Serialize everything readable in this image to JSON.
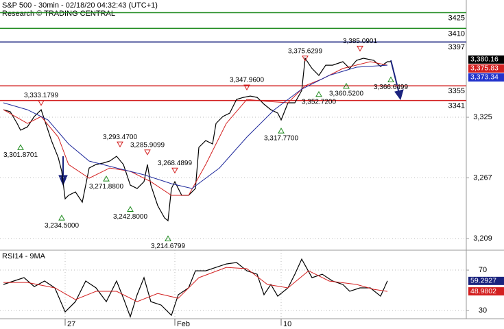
{
  "chart_data": [
    {
      "type": "line",
      "title": "S&P 500 - 30min - 02/18/20 04:32:43 (UTC+1)",
      "subtitle": "Research © TRADING CENTRAL",
      "xlim": [
        0,
        136
      ],
      "ylim": [
        3197.9,
        3437.1
      ],
      "yticks": [
        {
          "value": 3325,
          "label": "3,325"
        },
        {
          "value": 3267,
          "label": "3,267"
        },
        {
          "value": 3209,
          "label": "3,209"
        }
      ],
      "grid": true,
      "series": [
        {
          "color": "#000000",
          "x": [
            1,
            3,
            5,
            6,
            8,
            10,
            12,
            13,
            15,
            17,
            18,
            19,
            20,
            22,
            24,
            25,
            26,
            28,
            30,
            32,
            34,
            36,
            38,
            40,
            42,
            43,
            44,
            46,
            48,
            49,
            50,
            51,
            53,
            55,
            57,
            58,
            60,
            62,
            63,
            65,
            67,
            69,
            71,
            73,
            75,
            77,
            79,
            81,
            82,
            84,
            86,
            88,
            89,
            91,
            93,
            95,
            97,
            100,
            102,
            104,
            106,
            109,
            111,
            113,
            114
          ],
          "values": [
            3332.2,
            3330.3,
            3319.1,
            3312.6,
            3315.8,
            3325.7,
            3332.2,
            3322.4,
            3302.7,
            3286.4,
            3273.3,
            3247.0,
            3250.3,
            3253.6,
            3243.8,
            3260.1,
            3276.5,
            3279.8,
            3281.1,
            3283.1,
            3287.7,
            3279.8,
            3260.1,
            3256.9,
            3263.4,
            3279.8,
            3260.1,
            3240.5,
            3228.7,
            3226.1,
            3256.9,
            3263.4,
            3250.3,
            3250.3,
            3256.9,
            3296.2,
            3302.7,
            3299.5,
            3319.1,
            3325.7,
            3329.0,
            3342.1,
            3344.0,
            3345.3,
            3344.0,
            3337.5,
            3332.2,
            3329.0,
            3322.4,
            3338.8,
            3338.8,
            3350.6,
            3381.4,
            3371.6,
            3365.0,
            3374.8,
            3374.8,
            3378.1,
            3371.6,
            3379.4,
            3381.4,
            3379.4,
            3373.5,
            3378.1,
            3378.1
          ]
        },
        {
          "color": "#d32020",
          "x": [
            1,
            8,
            12,
            17,
            20,
            26,
            32,
            38,
            44,
            50,
            55,
            60,
            66,
            72,
            78,
            84,
            89,
            94,
            100,
            108,
            113
          ],
          "values": [
            3332.2,
            3319.1,
            3325.7,
            3306.0,
            3279.8,
            3266.7,
            3276.5,
            3273.3,
            3263.4,
            3250.3,
            3250.3,
            3279.8,
            3319.1,
            3342.1,
            3340.1,
            3338.8,
            3355.2,
            3361.7,
            3371.6,
            3378.1,
            3374.8
          ]
        },
        {
          "color": "#1f2a9c",
          "x": [
            1,
            8,
            14,
            20,
            26,
            34,
            42,
            50,
            56,
            64,
            72,
            80,
            88,
            96,
            104,
            113
          ],
          "values": [
            3338.8,
            3332.2,
            3322.4,
            3299.5,
            3283.1,
            3276.5,
            3270.0,
            3261.5,
            3256.9,
            3276.5,
            3306.0,
            3332.2,
            3351.9,
            3365.0,
            3372.9,
            3374.8
          ]
        }
      ],
      "levels": {
        "values": [
          3425,
          3410,
          3397,
          3355,
          3341
        ],
        "colors": [
          "#1e8a1e",
          "#1e8a1e",
          "#1a237e",
          "#d32020",
          "#d32020"
        ]
      },
      "annotations": {
        "x": [
          12,
          6,
          18,
          35,
          31,
          43,
          38,
          51,
          49,
          72,
          82,
          89,
          93,
          101,
          105,
          114
        ],
        "values": [
          3333.1799,
          3301.8701,
          3234.5,
          3293.47,
          3271.88,
          3285.9099,
          3242.8,
          3268.4899,
          3214.6799,
          3347.96,
          3317.77,
          3375.6299,
          3352.72,
          3360.52,
          3385.0901,
          3366.6499
        ],
        "value_labels": [
          "3,333.1799",
          "3,301.8701",
          "3,234.5000",
          "3,293.4700",
          "3,271.8800",
          "3,285.9099",
          "3,242.8000",
          "3,268.4899",
          "3,214.6799",
          "3,347.9600",
          "3,317.7700",
          "3,375.6299",
          "3,352.7200",
          "3,360.5200",
          "3,385.0901",
          "3,366.6499"
        ],
        "kinds": [
          "high",
          "low",
          "low",
          "high",
          "low",
          "high",
          "low",
          "high",
          "low",
          "high",
          "low",
          "high",
          "low",
          "low",
          "high",
          "low"
        ]
      },
      "price_tags": {
        "values": [
          3380.16,
          3375.83,
          3373.34
        ],
        "value_labels": [
          "3,380.16",
          "3,375.83",
          "3,373.34"
        ],
        "colors": [
          "#000000",
          "#d32020",
          "#2233cc"
        ]
      }
    },
    {
      "type": "line",
      "title": "RSI14 - 9MA",
      "xlim": [
        0,
        136
      ],
      "ylim": [
        21.9,
        89.7
      ],
      "yticks": [
        70,
        30
      ],
      "xticks": [
        {
          "value": 19,
          "label": "27"
        },
        {
          "value": 51,
          "label": "Feb"
        },
        {
          "value": 82,
          "label": "10"
        }
      ],
      "grid": true,
      "series": [
        {
          "color": "#000000",
          "x": [
            1,
            4,
            7,
            10,
            13,
            16,
            19,
            22,
            25,
            28,
            31,
            34,
            36,
            38,
            40,
            42,
            44,
            47,
            50,
            52,
            55,
            57,
            60,
            63,
            66,
            69,
            72,
            75,
            77,
            79,
            81,
            84,
            86,
            88,
            91,
            94,
            97,
            100,
            102,
            105,
            108,
            111,
            113
          ],
          "values": [
            55.8,
            59.2,
            62.5,
            53.7,
            59.2,
            52.4,
            28.6,
            38.8,
            59.2,
            52.4,
            38.8,
            59.2,
            42.2,
            23.9,
            45.6,
            62.5,
            38.8,
            35.4,
            25.3,
            45.6,
            52.4,
            69.3,
            69.3,
            72.7,
            76.1,
            77.5,
            69.3,
            65.9,
            45.6,
            55.8,
            44.2,
            52.4,
            65.9,
            80.8,
            62.5,
            65.9,
            59.2,
            55.8,
            49.0,
            52.4,
            52.4,
            44.2,
            59.2927
          ]
        },
        {
          "color": "#d32020",
          "x": [
            1,
            8,
            16,
            22,
            28,
            34,
            40,
            46,
            52,
            58,
            66,
            72,
            78,
            84,
            90,
            96,
            104,
            109,
            113
          ],
          "values": [
            57.8,
            57.8,
            52.4,
            40.8,
            49.0,
            49.0,
            38.8,
            46.9,
            42.2,
            62.5,
            72.7,
            71.4,
            55.8,
            52.4,
            69.3,
            59.2,
            55.8,
            51.0,
            48.9802
          ]
        }
      ],
      "price_tags": {
        "values": [
          59.2927,
          48.9802
        ],
        "colors": [
          "#1a237e",
          "#d32020"
        ]
      }
    }
  ]
}
